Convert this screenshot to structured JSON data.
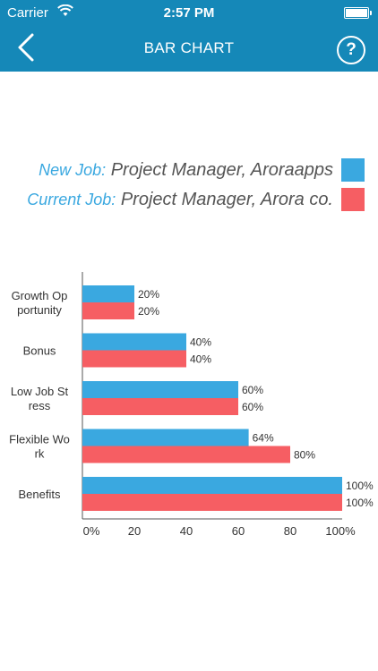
{
  "status_bar": {
    "carrier": "Carrier",
    "time": "2:57 PM"
  },
  "nav": {
    "title": "BAR CHART",
    "help_label": "?"
  },
  "legend": [
    {
      "key": "New Job:",
      "value": "Project Manager, Aroraapps",
      "color": "#3aa8e0"
    },
    {
      "key": "Current Job:",
      "value": "Project Manager, Arora co.",
      "color": "#f65e63"
    }
  ],
  "chart_data": {
    "type": "bar",
    "orientation": "horizontal",
    "categories": [
      [
        "Growth Op",
        "portunity"
      ],
      [
        "Bonus"
      ],
      [
        "Low Job St",
        "ress"
      ],
      [
        "Flexible Wo",
        "rk"
      ],
      [
        "Benefits"
      ]
    ],
    "series": [
      {
        "name": "New Job",
        "color": "#3aa8e0",
        "values": [
          20,
          40,
          60,
          64,
          100
        ],
        "labels": [
          "20%",
          "40%",
          "60%",
          "64%",
          "100%"
        ]
      },
      {
        "name": "Current Job",
        "color": "#f65e63",
        "values": [
          20,
          40,
          60,
          80,
          100
        ],
        "labels": [
          "20%",
          "40%",
          "60%",
          "80%",
          "100%"
        ]
      }
    ],
    "xticks": [
      "0%",
      "20",
      "40",
      "60",
      "80",
      "100%"
    ],
    "xlim": [
      0,
      100
    ],
    "grid": false
  }
}
